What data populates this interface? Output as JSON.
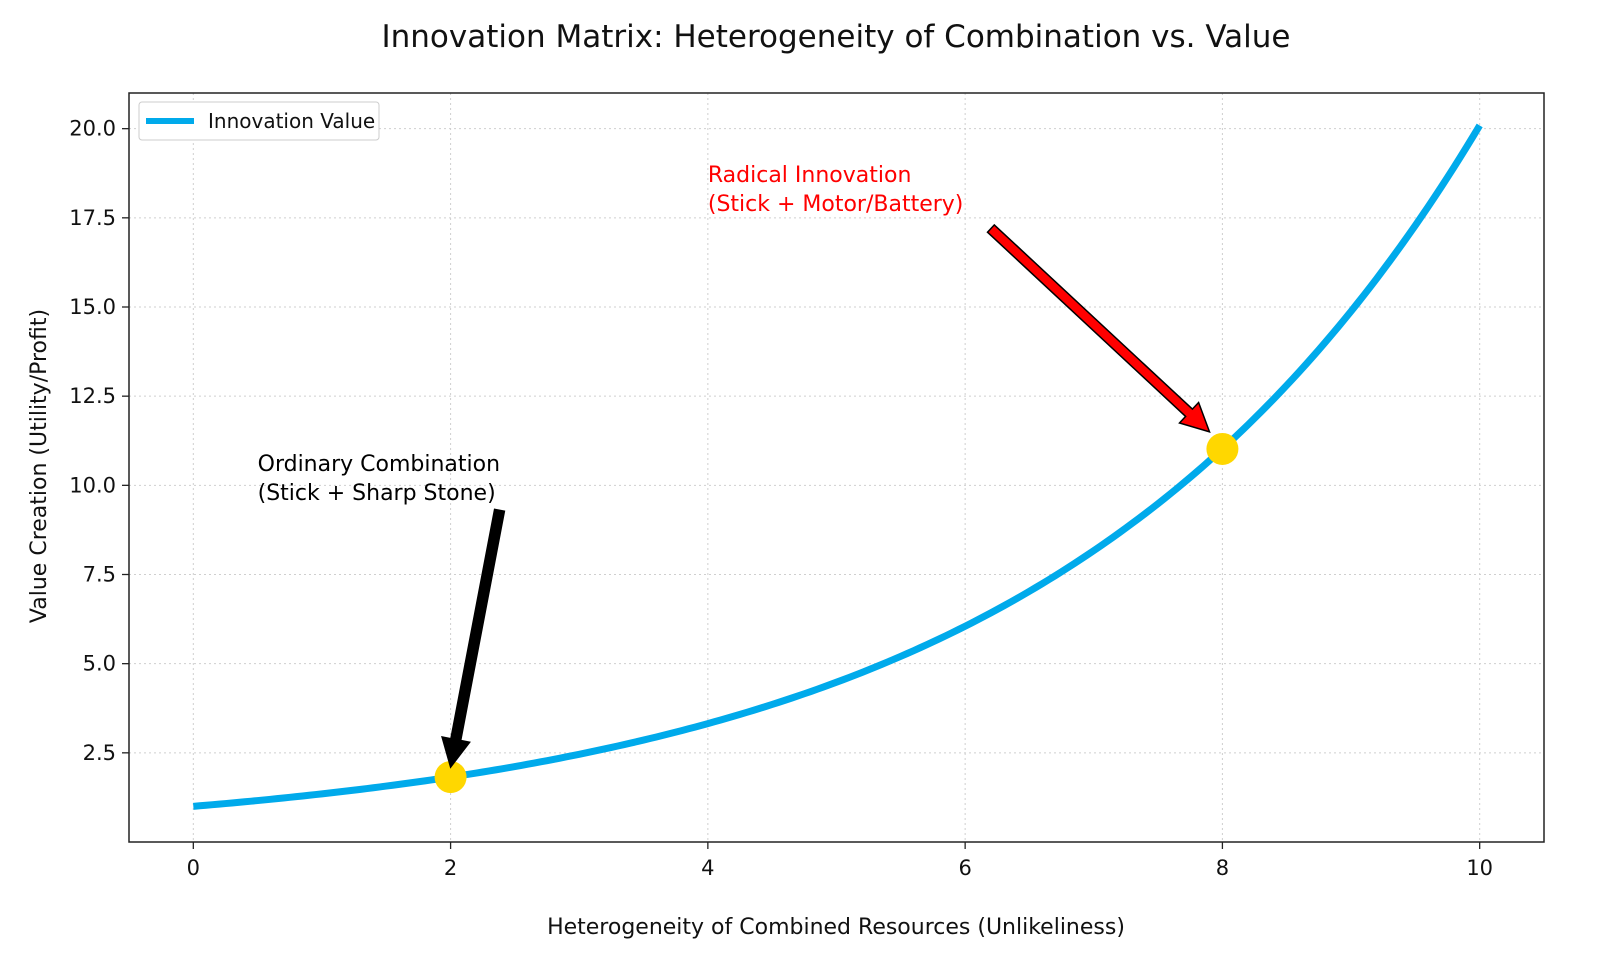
{
  "chart_data": {
    "type": "line",
    "title": "Innovation Matrix: Heterogeneity of Combination vs. Value",
    "xlabel": "Heterogeneity of Combined Resources (Unlikeliness)",
    "ylabel": "Value Creation (Utility/Profit)",
    "xlim": [
      -0.5,
      10.5
    ],
    "ylim": [
      0,
      21
    ],
    "xticks": [
      0,
      2,
      4,
      6,
      8,
      10
    ],
    "xtick_labels": [
      "0",
      "2",
      "4",
      "6",
      "8",
      "10"
    ],
    "yticks": [
      2.5,
      5.0,
      7.5,
      10.0,
      12.5,
      15.0,
      17.5,
      20.0
    ],
    "ytick_labels": [
      "2.5",
      "5.0",
      "7.5",
      "10.0",
      "12.5",
      "15.0",
      "17.5",
      "20.0"
    ],
    "grid": true,
    "legend_position": "top-left",
    "series": [
      {
        "name": "Innovation Value",
        "color": "#00aaeb",
        "function": "exp(0.3x)",
        "x": [
          0,
          1,
          2,
          3,
          4,
          5,
          6,
          7,
          8,
          9,
          10
        ],
        "y": [
          1.0,
          1.35,
          1.82,
          2.46,
          3.32,
          4.48,
          6.05,
          8.17,
          11.02,
          14.88,
          20.09
        ]
      }
    ],
    "highlight_points": [
      {
        "x": 2,
        "y": 1.82,
        "color": "#ffd700"
      },
      {
        "x": 8,
        "y": 11.02,
        "color": "#ffd700"
      }
    ],
    "annotations": [
      {
        "lines": [
          "Ordinary Combination",
          "(Stick + Sharp Stone)"
        ],
        "color": "#000000",
        "arrow_color": "#000000",
        "text_x": 0.5,
        "text_y": 10.4,
        "arrow_from": [
          2.38,
          9.3
        ],
        "arrow_to": [
          2.0,
          2.1
        ]
      },
      {
        "lines": [
          "Radical Innovation",
          "(Stick + Motor/Battery)"
        ],
        "color": "#ff0000",
        "arrow_color": "#ff0000",
        "text_x": 4.0,
        "text_y": 18.5,
        "arrow_from": [
          6.2,
          17.2
        ],
        "arrow_to": [
          7.9,
          11.5
        ]
      }
    ]
  }
}
